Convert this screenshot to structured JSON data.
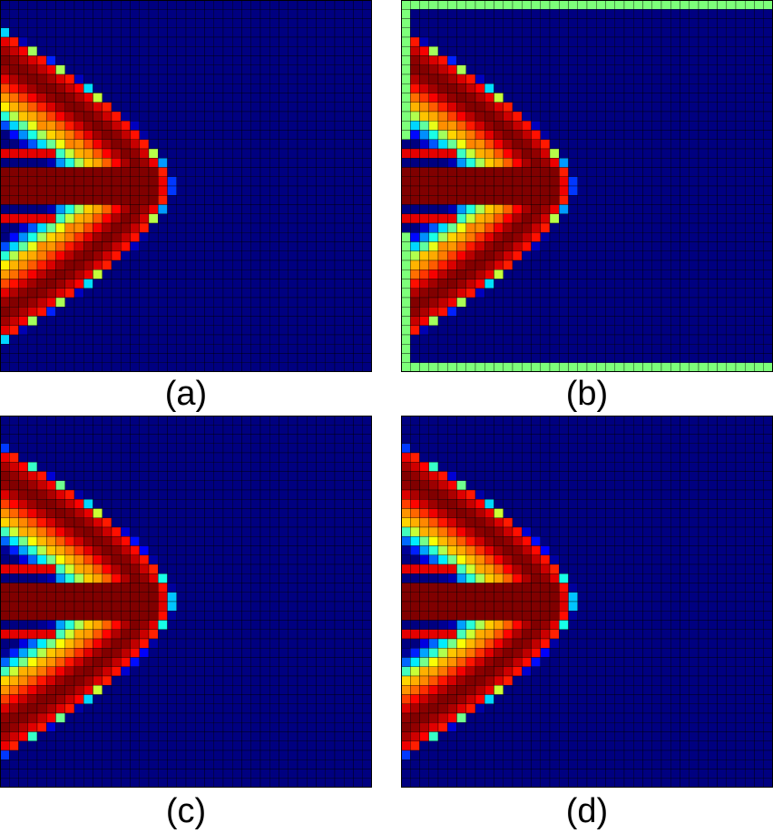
{
  "figure": {
    "panels": [
      {
        "id": "a",
        "caption": "(a)",
        "variant": "plain"
      },
      {
        "id": "b",
        "caption": "(b)",
        "variant": "bordered"
      },
      {
        "id": "c",
        "caption": "(c)",
        "variant": "plain"
      },
      {
        "id": "d",
        "caption": "(d)",
        "variant": "plain"
      }
    ],
    "colormap": "jet",
    "colors": {
      "low": "#00007f",
      "high": "#7f0000",
      "grid": "#000000",
      "border_cells": "#7dff7a"
    }
  }
}
